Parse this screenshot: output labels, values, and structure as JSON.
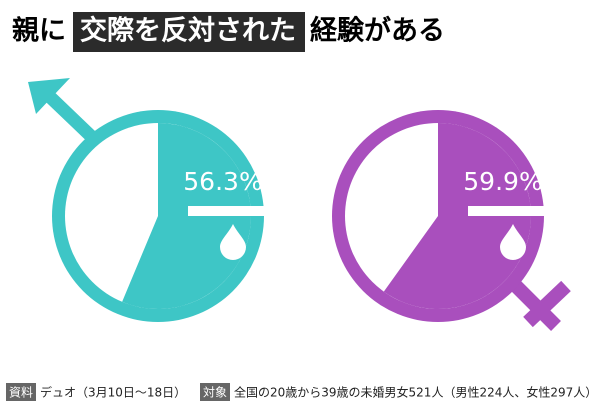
{
  "title": {
    "before": "親に",
    "highlight": "交際を反対された",
    "after": "経験がある"
  },
  "chart_data": [
    {
      "type": "pie",
      "values": [
        56.3
      ],
      "value_labels": [
        "56.3%"
      ],
      "color": "#3ec6c6"
    },
    {
      "type": "pie",
      "values": [
        59.9
      ],
      "value_labels": [
        "59.9%"
      ],
      "color": "#a94fbd"
    }
  ],
  "footer": {
    "source_label": "資料",
    "source": "デュオ（3月10日～18日）",
    "target_label": "対象",
    "target": "全国の20歳から39歳の未婚男女521人（男性224人、女性297人）"
  }
}
